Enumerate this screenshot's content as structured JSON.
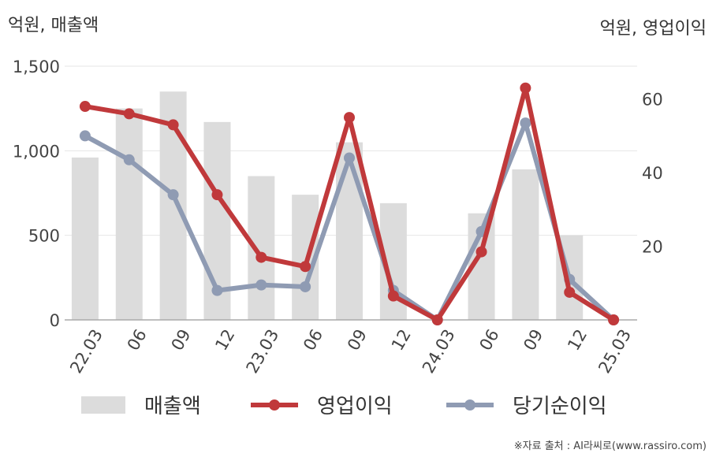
{
  "units": {
    "left": "억원, 매출액",
    "right": "억원, 영업이익"
  },
  "source": "※자료 출처 : AI라씨로(www.rassiro.com)",
  "colors": {
    "bar": "#dcdcdc",
    "op": "#c0393b",
    "net": "#8f9bb3",
    "grid": "#e6e6e6",
    "axis": "#aaaaaa"
  },
  "chart_data": {
    "type": "bar",
    "categories": [
      "22.03",
      "06",
      "09",
      "12",
      "23.03",
      "06",
      "09",
      "12",
      "24.03",
      "06",
      "09",
      "12",
      "25.03"
    ],
    "left_axis": {
      "ticks": [
        "0",
        "500",
        "1,000",
        "1,500"
      ],
      "ylim": [
        0,
        1500
      ]
    },
    "right_axis": {
      "ticks": [
        "20",
        "40",
        "60"
      ],
      "ylim": [
        0,
        70
      ]
    },
    "series": [
      {
        "name": "매출액",
        "type": "bar",
        "axis": "left",
        "values": [
          960,
          1250,
          1350,
          1170,
          850,
          740,
          1050,
          690,
          0,
          630,
          890,
          500,
          0
        ]
      },
      {
        "name": "영업이익",
        "type": "line",
        "axis": "right",
        "values": [
          58,
          56,
          53,
          34,
          17,
          14.5,
          55,
          6.5,
          0,
          18.5,
          63,
          7.5,
          0
        ]
      },
      {
        "name": "당기순이익",
        "type": "line",
        "axis": "right",
        "values": [
          50,
          43.5,
          34,
          8,
          9.5,
          9,
          44,
          8,
          0,
          24,
          53.5,
          11,
          0
        ]
      }
    ]
  }
}
